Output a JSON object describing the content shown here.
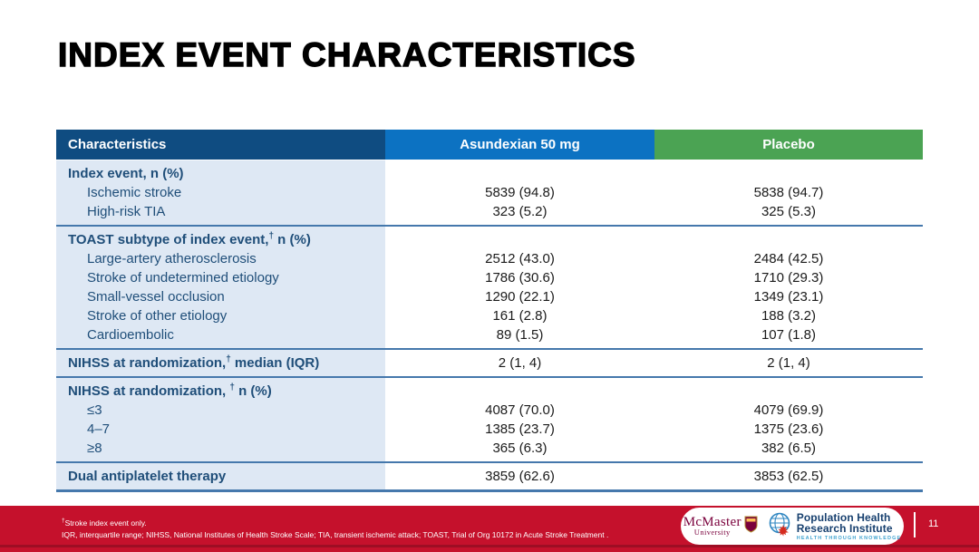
{
  "slide": {
    "title": "INDEX EVENT CHARACTERISTICS"
  },
  "table": {
    "columns": [
      "Characteristics",
      "Asundexian 50 mg",
      "Placebo"
    ],
    "groups": [
      {
        "rows": [
          {
            "text": "Index event, n (%)",
            "bold": true
          },
          {
            "text": "Ischemic stroke",
            "indent": true,
            "values": [
              "5839 (94.8)",
              "5838 (94.7)"
            ]
          },
          {
            "text": "High-risk TIA",
            "indent": true,
            "values": [
              "323 (5.2)",
              "325 (5.3)"
            ]
          }
        ]
      },
      {
        "rows": [
          {
            "text": "TOAST subtype of index event,",
            "sup": "†",
            "rest": " n (%)",
            "bold": true
          },
          {
            "text": "Large-artery atherosclerosis",
            "indent": true,
            "values": [
              "2512 (43.0)",
              "2484 (42.5)"
            ]
          },
          {
            "text": "Stroke of undetermined etiology",
            "indent": true,
            "values": [
              "1786 (30.6)",
              "1710 (29.3)"
            ]
          },
          {
            "text": "Small-vessel occlusion",
            "indent": true,
            "values": [
              "1290 (22.1)",
              "1349 (23.1)"
            ]
          },
          {
            "text": "Stroke of other etiology",
            "indent": true,
            "values": [
              "161 (2.8)",
              "188 (3.2)"
            ]
          },
          {
            "text": "Cardioembolic",
            "indent": true,
            "values": [
              "89 (1.5)",
              "107 (1.8)"
            ]
          }
        ]
      },
      {
        "rows": [
          {
            "text": "NIHSS at randomization,",
            "sup": "†",
            "rest": " median (IQR)",
            "bold": true,
            "values": [
              "2 (1, 4)",
              "2 (1, 4)"
            ]
          }
        ]
      },
      {
        "rows": [
          {
            "text": "NIHSS at randomization, ",
            "sup": "†",
            "rest": " n (%)",
            "bold": true
          },
          {
            "text": "≤3",
            "indent": true,
            "values": [
              "4087 (70.0)",
              "4079 (69.9)"
            ]
          },
          {
            "text": "4–7",
            "indent": true,
            "values": [
              "1385 (23.7)",
              "1375 (23.6)"
            ]
          },
          {
            "text": "≥8",
            "indent": true,
            "values": [
              "365 (6.3)",
              "382 (6.5)"
            ]
          }
        ]
      },
      {
        "rows": [
          {
            "text": "Dual antiplatelet therapy",
            "bold": true,
            "values": [
              "3859 (62.6)",
              "3853 (62.5)"
            ]
          }
        ]
      }
    ]
  },
  "footer": {
    "footnote_sup": "†",
    "footnote1": "Stroke index event only.",
    "footnote2": "IQR, interquartile range; NIHSS, National Institutes of Health Stroke Scale; TIA, transient ischemic attack; TOAST, Trial of Org 10172 in Acute Stroke Treatment .",
    "page_number": "11",
    "logos": {
      "mcmaster_line1": "McMaster",
      "mcmaster_line2": "University",
      "phri_line1": "Population Health",
      "phri_line2": "Research Institute",
      "phri_tagline": "HEALTH THROUGH KNOWLEDGE"
    }
  },
  "colors": {
    "header_characteristics": "#0F4C81",
    "header_asundexian": "#0C72C2",
    "header_placebo": "#4BA353",
    "label_column_bg": "#DEE8F4",
    "label_text": "#1F4E79",
    "separator": "#4578AC",
    "footer_bar": "#C5112C",
    "mcmaster_maroon": "#7A003C",
    "phri_navy": "#17406F",
    "phri_teal": "#3FA3D0"
  }
}
